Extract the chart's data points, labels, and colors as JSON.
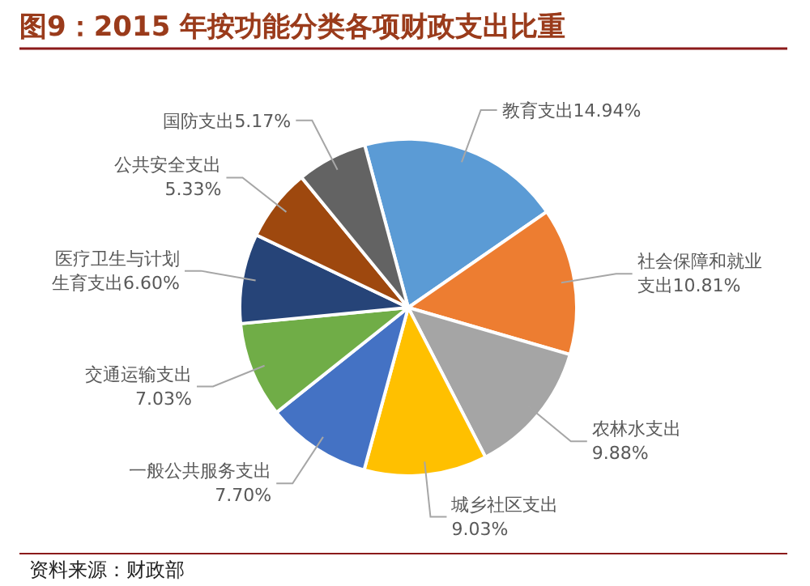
{
  "chart_data": {
    "type": "pie",
    "title": "图9：2015 年按功能分类各项财政支出比重",
    "categories": [
      "教育支出",
      "社会保障和就业支出",
      "农林水支出",
      "城乡社区支出",
      "一般公共服务支出",
      "交通运输支出",
      "医疗卫生与计划生育支出",
      "公共安全支出",
      "国防支出"
    ],
    "values": [
      14.94,
      10.81,
      9.88,
      9.03,
      7.7,
      7.03,
      6.6,
      5.33,
      5.17
    ],
    "colors": [
      "#5b9bd5",
      "#ed7d31",
      "#a5a5a5",
      "#ffc000",
      "#4472c4",
      "#70ad47",
      "#264478",
      "#9e480e",
      "#636363"
    ],
    "value_labels": [
      "14.94%",
      "10.81%",
      "9.88%",
      "9.03%",
      "7.70%",
      "7.03%",
      "6.60%",
      "5.33%",
      "5.17%"
    ],
    "annotations": [
      "资料来源：财政部"
    ]
  }
}
